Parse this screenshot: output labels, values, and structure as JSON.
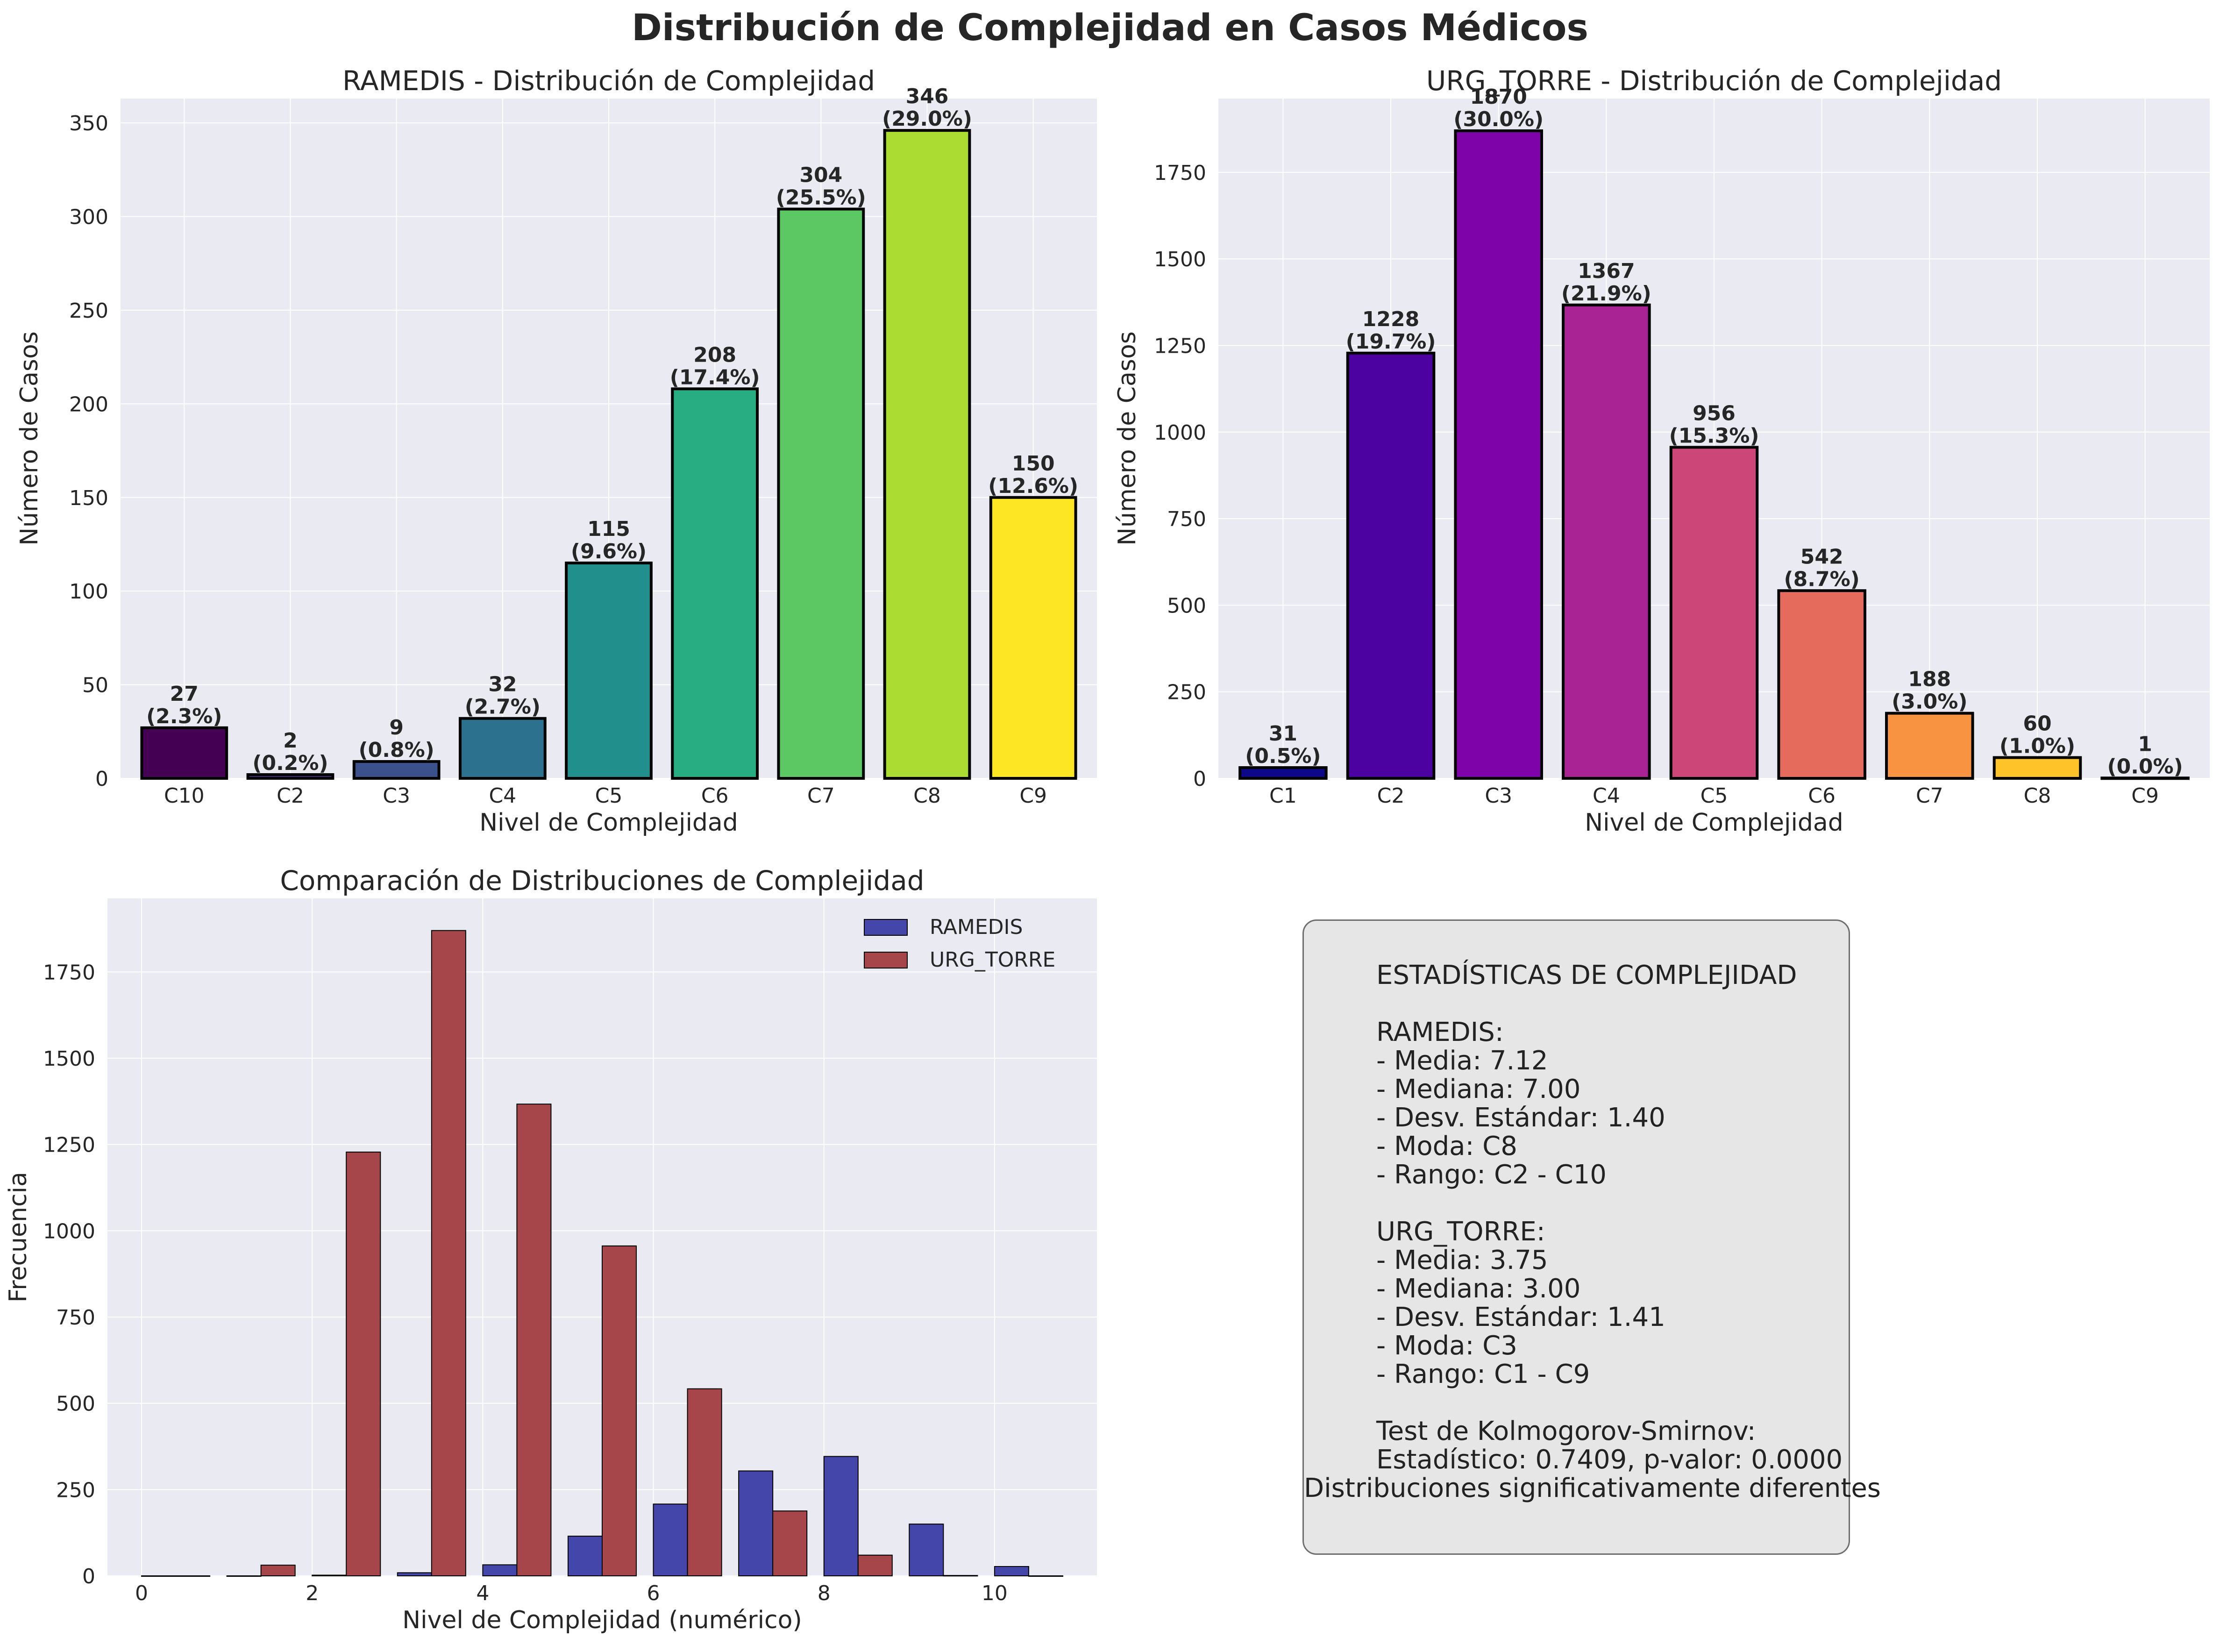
{
  "figure": {
    "suptitle": "Distribución de Complejidad en Casos Médicos"
  },
  "colors": {
    "plot_background": "#eaeaf2",
    "grid": "#ffffff",
    "ramedis_bar": "#4446aa",
    "urg_torre_bar": "#a7464a",
    "bar_edge": "#000000"
  },
  "chart_data": [
    {
      "type": "bar",
      "title": "RAMEDIS - Distribución de Complejidad",
      "xlabel": "Nivel de Complejidad",
      "ylabel": "Número de Casos",
      "categories": [
        "C10",
        "C2",
        "C3",
        "C4",
        "C5",
        "C6",
        "C7",
        "C8",
        "C9"
      ],
      "values": [
        27,
        2,
        9,
        32,
        115,
        208,
        304,
        346,
        150
      ],
      "labels": [
        "(2.3%)",
        "(0.2%)",
        "(0.8%)",
        "(2.7%)",
        "(9.6%)",
        "(17.4%)",
        "(25.5%)",
        "(29.0%)",
        "(12.6%)"
      ],
      "colors": [
        "#440154",
        "#472c7a",
        "#3b518b",
        "#2c718e",
        "#21908d",
        "#27ad81",
        "#5cc863",
        "#aadc32",
        "#fde725"
      ],
      "ylim": [
        0,
        363
      ],
      "yticks": [
        0,
        50,
        100,
        150,
        200,
        250,
        300,
        350
      ],
      "grid": true
    },
    {
      "type": "bar",
      "title": "URG_TORRE - Distribución de Complejidad",
      "xlabel": "Nivel de Complejidad",
      "ylabel": "Número de Casos",
      "categories": [
        "C1",
        "C2",
        "C3",
        "C4",
        "C5",
        "C6",
        "C7",
        "C8",
        "C9"
      ],
      "values": [
        31,
        1228,
        1870,
        1367,
        956,
        542,
        188,
        60,
        1
      ],
      "labels": [
        "(0.5%)",
        "(19.7%)",
        "(30.0%)",
        "(21.9%)",
        "(15.3%)",
        "(8.7%)",
        "(3.0%)",
        "(1.0%)",
        "(0.0%)"
      ],
      "colors": [
        "#0d0887",
        "#4c02a1",
        "#7e03a8",
        "#a92395",
        "#cc4778",
        "#e56b5d",
        "#f89441",
        "#fdc328",
        "#f0f921"
      ],
      "ylim": [
        0,
        1963
      ],
      "yticks": [
        0,
        250,
        500,
        750,
        1000,
        1250,
        1500,
        1750
      ],
      "grid": true
    },
    {
      "type": "bar",
      "title": "Comparación de Distribuciones de Complejidad",
      "xlabel": "Nivel de Complejidad (numérico)",
      "ylabel": "Frecuencia",
      "x": [
        0,
        1,
        2,
        3,
        4,
        5,
        6,
        7,
        8,
        9,
        10
      ],
      "series": [
        {
          "name": "RAMEDIS",
          "values": [
            0,
            0,
            2,
            9,
            32,
            115,
            208,
            304,
            346,
            150,
            27
          ]
        },
        {
          "name": "URG_TORRE",
          "values": [
            0,
            31,
            1228,
            1870,
            1367,
            956,
            542,
            188,
            60,
            1,
            0
          ]
        }
      ],
      "xlim": [
        -0.4,
        11.2
      ],
      "xticks": [
        0,
        2,
        4,
        6,
        8,
        10
      ],
      "ylim": [
        0,
        1963
      ],
      "yticks": [
        0,
        250,
        500,
        750,
        1000,
        1250,
        1500,
        1750
      ],
      "legend": "top-right",
      "grid": true
    }
  ],
  "stats": {
    "title": "ESTADÍSTICAS DE COMPLEJIDAD",
    "ramedis_header": "RAMEDIS:",
    "ramedis_lines": [
      "- Media: 7.12",
      "- Mediana: 7.00",
      "- Desv. Estándar: 1.40",
      "- Moda: C8",
      "- Rango: C2 - C10"
    ],
    "urg_header": "URG_TORRE:",
    "urg_lines": [
      "- Media: 3.75",
      "- Mediana: 3.00",
      "- Desv. Estándar: 1.41",
      "- Moda: C3",
      "- Rango: C1 - C9"
    ],
    "ks_header": "Test de Kolmogorov-Smirnov:",
    "ks_result": "Estadístico: 0.7409, p-valor: 0.0000",
    "ks_conclusion": "Distribuciones significativamente diferentes"
  }
}
